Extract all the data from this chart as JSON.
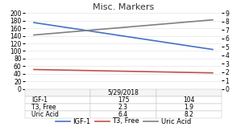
{
  "title": "Misc. Markers",
  "x_values": [
    0,
    1
  ],
  "x_tick_label": "5/29/2018",
  "series": {
    "IGF-1": {
      "values": [
        175,
        104
      ],
      "color": "#4472C4",
      "linewidth": 1.2
    },
    "T3, Free": {
      "values": [
        2.3,
        1.9
      ],
      "color": "#C0504D",
      "linewidth": 1.2
    },
    "Uric Acid": {
      "values": [
        6.4,
        8.2
      ],
      "color": "#808080",
      "linewidth": 1.2
    }
  },
  "left_ylim": [
    0,
    200
  ],
  "right_ylim": [
    0,
    9
  ],
  "left_yticks": [
    0,
    20,
    40,
    60,
    80,
    100,
    120,
    140,
    160,
    180,
    200
  ],
  "right_yticks": [
    0,
    1,
    2,
    3,
    4,
    5,
    6,
    7,
    8,
    9
  ],
  "table_col_header": [
    "",
    "5/29/2018",
    ""
  ],
  "table_rows": [
    [
      "IGF-1",
      "175",
      "104"
    ],
    [
      "T3, Free",
      "2.3",
      "1.9"
    ],
    [
      "Uric Acid",
      "6.4",
      "8.2"
    ]
  ],
  "background_color": "#FFFFFF",
  "grid_color": "#E0E0E0",
  "title_fontsize": 8,
  "axis_fontsize": 5.5,
  "table_fontsize": 5.5,
  "legend_fontsize": 6
}
